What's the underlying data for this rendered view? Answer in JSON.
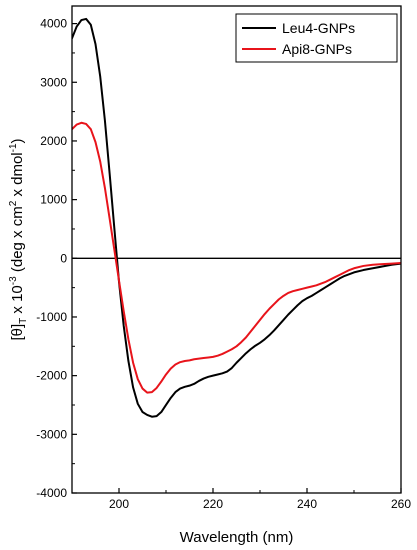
{
  "chart_data": {
    "type": "line",
    "xlabel": "Wavelength (nm)",
    "ylabel": {
      "base": "[θ]",
      "sub": "T",
      "times": " x 10",
      "exp": "-3",
      "units_open": " (deg x cm",
      "units_exp": "2",
      "units_mid": " x dmol",
      "units_exp2": "-1",
      "units_close": ")"
    },
    "xlim": [
      190,
      260
    ],
    "ylim": [
      -4000,
      4300
    ],
    "x_ticks": [
      200,
      220,
      240,
      260
    ],
    "y_ticks": [
      -4000,
      -3000,
      -2000,
      -1000,
      0,
      1000,
      2000,
      3000,
      4000
    ],
    "zero_line": true,
    "legend_position": "top-right",
    "series": [
      {
        "name": "Leu4-GNPs",
        "color": "#000000",
        "points": [
          [
            190,
            3750
          ],
          [
            191,
            3950
          ],
          [
            192,
            4060
          ],
          [
            193,
            4080
          ],
          [
            194,
            3980
          ],
          [
            195,
            3650
          ],
          [
            196,
            3100
          ],
          [
            197,
            2350
          ],
          [
            198,
            1450
          ],
          [
            199,
            520
          ],
          [
            200,
            -400
          ],
          [
            201,
            -1150
          ],
          [
            202,
            -1750
          ],
          [
            203,
            -2200
          ],
          [
            204,
            -2480
          ],
          [
            205,
            -2620
          ],
          [
            206,
            -2670
          ],
          [
            207,
            -2700
          ],
          [
            208,
            -2690
          ],
          [
            209,
            -2620
          ],
          [
            210,
            -2500
          ],
          [
            211,
            -2380
          ],
          [
            212,
            -2280
          ],
          [
            213,
            -2220
          ],
          [
            214,
            -2190
          ],
          [
            215,
            -2170
          ],
          [
            216,
            -2140
          ],
          [
            217,
            -2090
          ],
          [
            218,
            -2050
          ],
          [
            219,
            -2020
          ],
          [
            220,
            -2000
          ],
          [
            221,
            -1980
          ],
          [
            222,
            -1960
          ],
          [
            223,
            -1930
          ],
          [
            224,
            -1870
          ],
          [
            225,
            -1780
          ],
          [
            226,
            -1700
          ],
          [
            227,
            -1620
          ],
          [
            228,
            -1550
          ],
          [
            229,
            -1490
          ],
          [
            230,
            -1440
          ],
          [
            231,
            -1380
          ],
          [
            232,
            -1310
          ],
          [
            233,
            -1230
          ],
          [
            234,
            -1140
          ],
          [
            235,
            -1050
          ],
          [
            236,
            -960
          ],
          [
            237,
            -880
          ],
          [
            238,
            -800
          ],
          [
            239,
            -730
          ],
          [
            240,
            -680
          ],
          [
            241,
            -640
          ],
          [
            242,
            -590
          ],
          [
            243,
            -540
          ],
          [
            244,
            -490
          ],
          [
            245,
            -440
          ],
          [
            246,
            -390
          ],
          [
            247,
            -340
          ],
          [
            248,
            -300
          ],
          [
            249,
            -270
          ],
          [
            250,
            -240
          ],
          [
            252,
            -200
          ],
          [
            254,
            -170
          ],
          [
            256,
            -140
          ],
          [
            258,
            -110
          ],
          [
            260,
            -90
          ]
        ]
      },
      {
        "name": "Api8-GNPs",
        "color": "#e8141b",
        "points": [
          [
            190,
            2200
          ],
          [
            191,
            2280
          ],
          [
            192,
            2310
          ],
          [
            193,
            2290
          ],
          [
            194,
            2200
          ],
          [
            195,
            1980
          ],
          [
            196,
            1650
          ],
          [
            197,
            1200
          ],
          [
            198,
            680
          ],
          [
            199,
            150
          ],
          [
            200,
            -380
          ],
          [
            201,
            -900
          ],
          [
            202,
            -1380
          ],
          [
            203,
            -1780
          ],
          [
            204,
            -2060
          ],
          [
            205,
            -2220
          ],
          [
            206,
            -2290
          ],
          [
            207,
            -2280
          ],
          [
            208,
            -2210
          ],
          [
            209,
            -2100
          ],
          [
            210,
            -1980
          ],
          [
            211,
            -1880
          ],
          [
            212,
            -1810
          ],
          [
            213,
            -1770
          ],
          [
            214,
            -1750
          ],
          [
            215,
            -1740
          ],
          [
            216,
            -1720
          ],
          [
            217,
            -1710
          ],
          [
            218,
            -1700
          ],
          [
            219,
            -1690
          ],
          [
            220,
            -1680
          ],
          [
            221,
            -1660
          ],
          [
            222,
            -1630
          ],
          [
            223,
            -1590
          ],
          [
            224,
            -1550
          ],
          [
            225,
            -1500
          ],
          [
            226,
            -1430
          ],
          [
            227,
            -1350
          ],
          [
            228,
            -1250
          ],
          [
            229,
            -1150
          ],
          [
            230,
            -1050
          ],
          [
            231,
            -950
          ],
          [
            232,
            -860
          ],
          [
            233,
            -780
          ],
          [
            234,
            -700
          ],
          [
            235,
            -640
          ],
          [
            236,
            -590
          ],
          [
            237,
            -560
          ],
          [
            238,
            -540
          ],
          [
            239,
            -520
          ],
          [
            240,
            -500
          ],
          [
            241,
            -480
          ],
          [
            242,
            -460
          ],
          [
            243,
            -430
          ],
          [
            244,
            -400
          ],
          [
            245,
            -360
          ],
          [
            246,
            -320
          ],
          [
            247,
            -280
          ],
          [
            248,
            -240
          ],
          [
            249,
            -200
          ],
          [
            250,
            -170
          ],
          [
            252,
            -130
          ],
          [
            254,
            -110
          ],
          [
            256,
            -100
          ],
          [
            258,
            -90
          ],
          [
            260,
            -80
          ]
        ]
      }
    ]
  }
}
